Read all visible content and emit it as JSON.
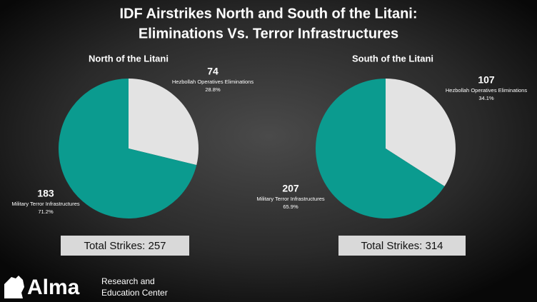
{
  "title_lines": [
    "IDF Airstrikes North and South of the Litani:",
    "Eliminations Vs. Terror Infrastructures"
  ],
  "chart_data": [
    {
      "type": "pie",
      "title": "North of the Litani",
      "categories": [
        "Hezbollah Operatives Eliminations",
        "Military Terror Infrastructures"
      ],
      "values": [
        74,
        183
      ],
      "percent_labels": [
        "28.8%",
        "71.2%"
      ],
      "colors": [
        "#e3e3e3",
        "#0b9b8f"
      ],
      "total_label": "Total Strikes: 257"
    },
    {
      "type": "pie",
      "title": "South of the Litani",
      "categories": [
        "Hezbollah Operatives Eliminations",
        "Military Terror Infrastructures"
      ],
      "values": [
        107,
        207
      ],
      "percent_labels": [
        "34.1%",
        "65.9%"
      ],
      "colors": [
        "#e3e3e3",
        "#0b9b8f"
      ],
      "total_label": "Total Strikes: 314"
    }
  ],
  "logo": {
    "name": "Alma",
    "line1": "Research and",
    "line2": "Education Center"
  }
}
